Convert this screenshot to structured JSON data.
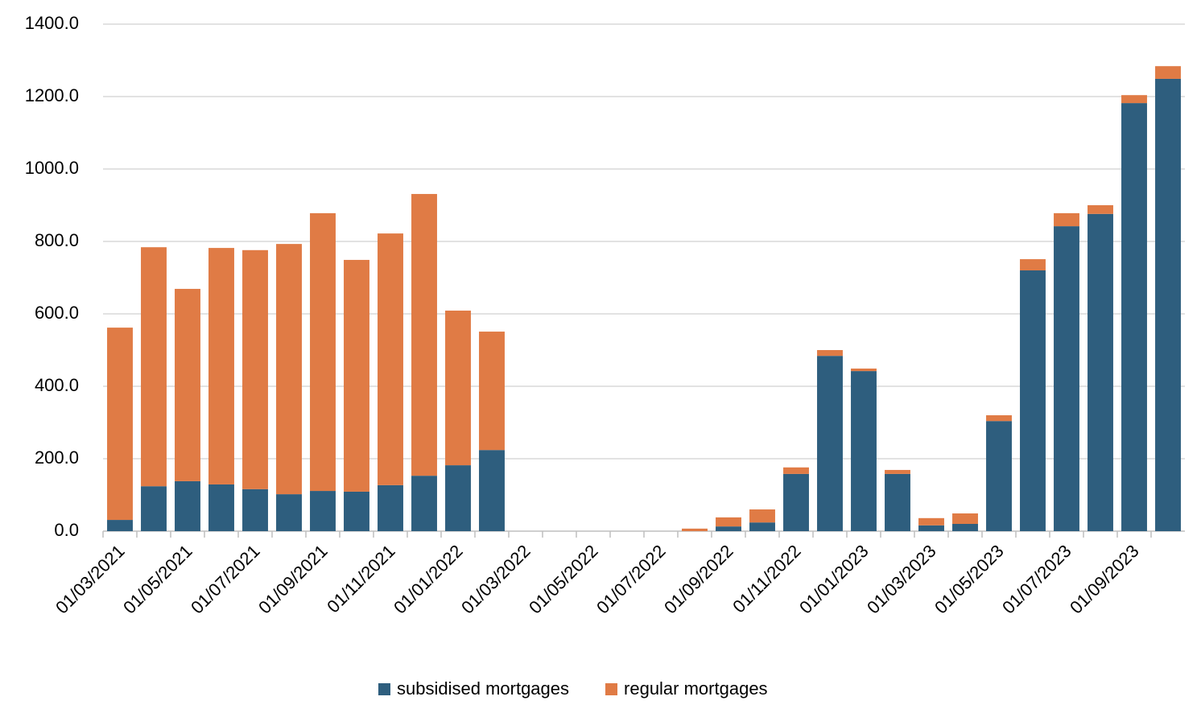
{
  "chart_data": {
    "type": "stacked_bar",
    "categories": [
      "01/03/2021",
      null,
      "01/05/2021",
      null,
      "01/07/2021",
      null,
      "01/09/2021",
      null,
      "01/11/2021",
      null,
      "01/01/2022",
      null,
      "01/03/2022",
      null,
      "01/05/2022",
      null,
      "01/07/2022",
      null,
      "01/09/2022",
      null,
      "01/11/2022",
      null,
      "01/01/2023",
      null,
      "01/03/2023",
      null,
      "01/05/2023",
      null,
      "01/07/2023",
      null,
      "01/09/2023",
      null
    ],
    "series": [
      {
        "name": "subsidised mortgages",
        "color": "#2e5e7e",
        "values": [
          31,
          124,
          138,
          129,
          116,
          102,
          111,
          109,
          127,
          153,
          182,
          224,
          0,
          0,
          0,
          0,
          0,
          0,
          13,
          24,
          158,
          484,
          442,
          158,
          16,
          20,
          304,
          720,
          842,
          876,
          1182,
          1249
        ]
      },
      {
        "name": "regular mortgages",
        "color": "#e07b45",
        "values": [
          531,
          660,
          531,
          653,
          660,
          691,
          767,
          640,
          695,
          778,
          427,
          327,
          0,
          0,
          0,
          0,
          0,
          7,
          25,
          36,
          18,
          16,
          7,
          11,
          20,
          29,
          16,
          31,
          36,
          24,
          22,
          35
        ]
      }
    ],
    "ylim": [
      0,
      1400
    ],
    "yticks": [
      {
        "value": 0,
        "label": "0.0"
      },
      {
        "value": 200,
        "label": "200.0"
      },
      {
        "value": 400,
        "label": "400.0"
      },
      {
        "value": 600,
        "label": "600.0"
      },
      {
        "value": 800,
        "label": "800.0"
      },
      {
        "value": 1000,
        "label": "1000.0"
      },
      {
        "value": 1200,
        "label": "1200.0"
      },
      {
        "value": 1400,
        "label": "1400.0"
      }
    ],
    "grid": true,
    "legend": "bottom"
  }
}
